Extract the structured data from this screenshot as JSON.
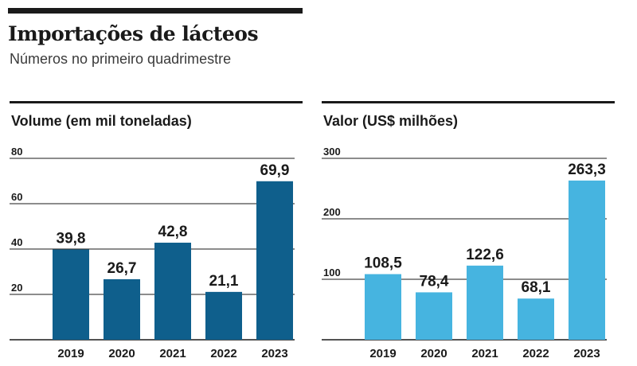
{
  "header": {
    "title": "Importações de lácteos",
    "subtitle": "Números no primeiro quadrimestre"
  },
  "colors": {
    "volume_bar": "#0f5f8c",
    "valor_bar": "#46b4e0",
    "text": "#1a1a1a",
    "gridline": "#1a1a1a"
  },
  "chart_data": [
    {
      "type": "bar",
      "title": "Volume (em mil toneladas)",
      "categories": [
        "2019",
        "2020",
        "2021",
        "2022",
        "2023"
      ],
      "values": [
        39.8,
        26.7,
        42.8,
        21.1,
        69.9
      ],
      "value_labels": [
        "39,8",
        "26,7",
        "42,8",
        "21,1",
        "69,9"
      ],
      "yticks": [
        20,
        40,
        60,
        80
      ],
      "ytick_labels": [
        "20",
        "40",
        "60",
        "80"
      ],
      "ylim": [
        0,
        80
      ],
      "grid": true,
      "color": "#0f5f8c"
    },
    {
      "type": "bar",
      "title": "Valor (US$ milhões)",
      "categories": [
        "2019",
        "2020",
        "2021",
        "2022",
        "2023"
      ],
      "values": [
        108.5,
        78.4,
        122.6,
        68.1,
        263.3
      ],
      "value_labels": [
        "108,5",
        "78,4",
        "122,6",
        "68,1",
        "263,3"
      ],
      "yticks": [
        100,
        200,
        300
      ],
      "ytick_labels": [
        "100",
        "200",
        "300"
      ],
      "ylim": [
        0,
        300
      ],
      "grid": true,
      "color": "#46b4e0"
    }
  ]
}
